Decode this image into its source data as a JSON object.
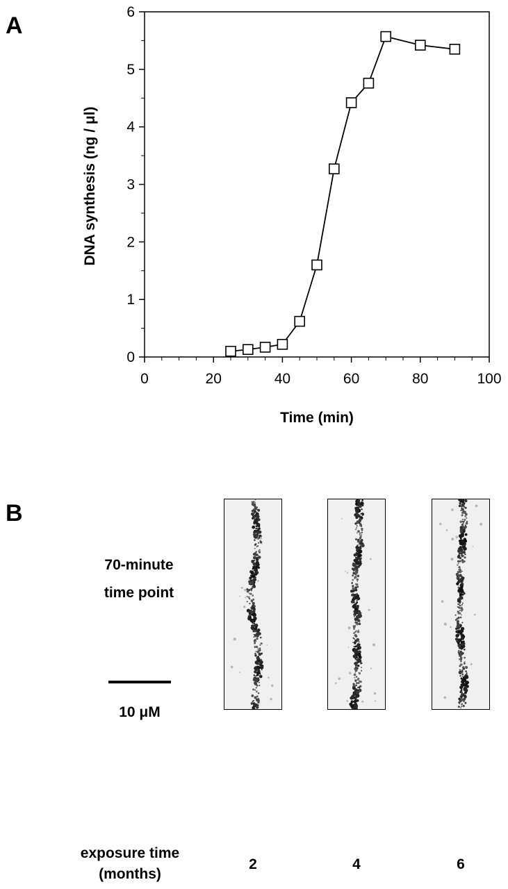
{
  "panel_a": {
    "letter": "A"
  },
  "panel_b": {
    "letter": "B",
    "row_label_line1": "70-minute",
    "row_label_line2": "time point",
    "scale_bar_label": "10 μM",
    "footer_label_line1": "exposure time",
    "footer_label_line2": "(months)",
    "strips": [
      {
        "label": "2"
      },
      {
        "label": "4"
      },
      {
        "label": "6"
      }
    ]
  },
  "chart_data": {
    "type": "line",
    "marker": "open-square",
    "xlabel": "Time  (min)",
    "ylabel": "DNA synthesis (ng / μl)",
    "xlim": [
      0,
      100
    ],
    "ylim": [
      0,
      6
    ],
    "xticks": [
      0,
      20,
      40,
      60,
      80,
      100
    ],
    "yticks": [
      0,
      1,
      2,
      3,
      4,
      5,
      6
    ],
    "grid": false,
    "series": [
      {
        "x": [
          25,
          30,
          35,
          40,
          45,
          50,
          55,
          60,
          65,
          70,
          80,
          90
        ],
        "y": [
          0.1,
          0.13,
          0.17,
          0.22,
          0.62,
          1.6,
          3.27,
          4.42,
          4.76,
          5.57,
          5.42,
          5.35
        ]
      }
    ]
  }
}
